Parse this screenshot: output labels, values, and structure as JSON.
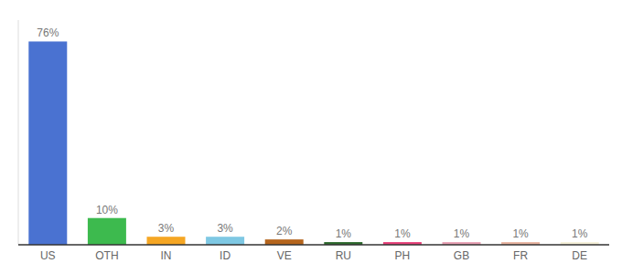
{
  "chart_data": {
    "type": "bar",
    "categories": [
      "US",
      "OTH",
      "IN",
      "ID",
      "VE",
      "RU",
      "PH",
      "GB",
      "FR",
      "DE"
    ],
    "values": [
      76,
      10,
      3,
      3,
      2,
      1,
      1,
      1,
      1,
      1
    ],
    "value_labels": [
      "76%",
      "10%",
      "3%",
      "3%",
      "2%",
      "1%",
      "1%",
      "1%",
      "1%",
      "1%"
    ],
    "colors": [
      "#4a72d1",
      "#3dba4e",
      "#f5a623",
      "#7ec8e3",
      "#b5651d",
      "#2d6a2d",
      "#e8417a",
      "#e8a0b4",
      "#e8b4a0",
      "#f5f0d8"
    ],
    "ylim": [
      0,
      84
    ],
    "data_labels": true,
    "tick_labels": "x",
    "grid": false
  }
}
